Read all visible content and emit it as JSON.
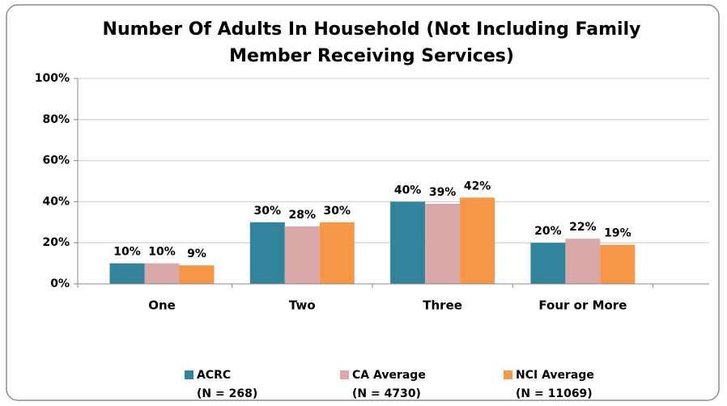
{
  "chart_data": {
    "type": "bar",
    "title": [
      "Number Of Adults In Household (Not Including Family",
      "Member Receiving Services)"
    ],
    "categories": [
      "One",
      "Two",
      "Three",
      "Four or More"
    ],
    "series": [
      {
        "name": "ACRC",
        "note": "(N = 268)",
        "color": "#31849b",
        "values": [
          10,
          30,
          40,
          20
        ],
        "value_labels": [
          "10%",
          "30%",
          "40%",
          "20%"
        ]
      },
      {
        "name": "CA Average",
        "note": "(N = 4730)",
        "color": "#d9a9a9",
        "values": [
          10,
          28,
          39,
          22
        ],
        "value_labels": [
          "10%",
          "28%",
          "39%",
          "22%"
        ]
      },
      {
        "name": "NCI Average",
        "note": "(N = 11069)",
        "color": "#f79646",
        "values": [
          9,
          30,
          42,
          19
        ],
        "value_labels": [
          "9%",
          "30%",
          "42%",
          "19%"
        ]
      }
    ],
    "ylim": [
      0,
      100
    ],
    "yticks": [
      {
        "value": 0,
        "label": "0%"
      },
      {
        "value": 20,
        "label": "20%"
      },
      {
        "value": 40,
        "label": "40%"
      },
      {
        "value": 60,
        "label": "60%"
      },
      {
        "value": 80,
        "label": "80%"
      },
      {
        "value": 100,
        "label": "100%"
      }
    ],
    "grid": true,
    "legend": "bottom"
  }
}
